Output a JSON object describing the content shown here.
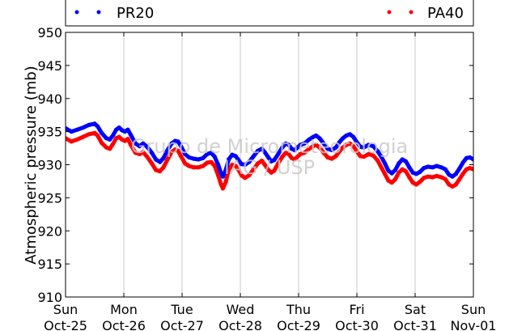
{
  "chart_data": {
    "type": "line",
    "ylabel": "Atmospheric pressure (mb)",
    "ylim": [
      910,
      950
    ],
    "yticks": [
      910,
      915,
      920,
      925,
      930,
      935,
      940,
      945,
      950
    ],
    "xlim": [
      0,
      7
    ],
    "xticks": [
      {
        "x": 0,
        "day": "Sun",
        "date": "Oct-25"
      },
      {
        "x": 1,
        "day": "Mon",
        "date": "Oct-26"
      },
      {
        "x": 2,
        "day": "Tue",
        "date": "Oct-27"
      },
      {
        "x": 3,
        "day": "Wed",
        "date": "Oct-28"
      },
      {
        "x": 4,
        "day": "Thu",
        "date": "Oct-29"
      },
      {
        "x": 5,
        "day": "Fri",
        "date": "Oct-30"
      },
      {
        "x": 6,
        "day": "Sat",
        "date": "Oct-31"
      },
      {
        "x": 7,
        "day": "Sun",
        "date": "Nov-01"
      }
    ],
    "grid": "vertical",
    "legend": "top",
    "watermark_lines": [
      "Grupo de Micrometeorologia",
      "IAG / USP"
    ],
    "series": [
      {
        "name": "PR20",
        "color": "#0000ff",
        "points": [
          [
            0.0,
            935.5
          ],
          [
            0.1,
            935.0
          ],
          [
            0.2,
            935.3
          ],
          [
            0.3,
            935.6
          ],
          [
            0.4,
            936.0
          ],
          [
            0.5,
            936.2
          ],
          [
            0.55,
            935.8
          ],
          [
            0.62,
            934.8
          ],
          [
            0.7,
            934.0
          ],
          [
            0.76,
            933.8
          ],
          [
            0.82,
            934.5
          ],
          [
            0.87,
            935.3
          ],
          [
            0.92,
            935.6
          ],
          [
            0.97,
            935.2
          ],
          [
            1.02,
            935.0
          ],
          [
            1.07,
            935.3
          ],
          [
            1.12,
            934.5
          ],
          [
            1.2,
            933.2
          ],
          [
            1.27,
            932.8
          ],
          [
            1.33,
            933.2
          ],
          [
            1.4,
            932.7
          ],
          [
            1.48,
            931.8
          ],
          [
            1.55,
            930.8
          ],
          [
            1.62,
            930.4
          ],
          [
            1.68,
            931.0
          ],
          [
            1.75,
            932.2
          ],
          [
            1.82,
            933.2
          ],
          [
            1.88,
            933.6
          ],
          [
            1.93,
            933.5
          ],
          [
            1.98,
            932.8
          ],
          [
            2.05,
            931.6
          ],
          [
            2.12,
            931.1
          ],
          [
            2.2,
            930.9
          ],
          [
            2.28,
            930.8
          ],
          [
            2.36,
            931.0
          ],
          [
            2.43,
            931.6
          ],
          [
            2.5,
            931.8
          ],
          [
            2.56,
            931.2
          ],
          [
            2.62,
            930.0
          ],
          [
            2.67,
            928.7
          ],
          [
            2.7,
            928.2
          ],
          [
            2.75,
            929.2
          ],
          [
            2.8,
            930.8
          ],
          [
            2.86,
            931.5
          ],
          [
            2.92,
            931.3
          ],
          [
            2.97,
            930.7
          ],
          [
            3.02,
            930.1
          ],
          [
            3.08,
            930.0
          ],
          [
            3.15,
            930.4
          ],
          [
            3.22,
            931.2
          ],
          [
            3.3,
            932.1
          ],
          [
            3.37,
            932.4
          ],
          [
            3.42,
            931.9
          ],
          [
            3.48,
            931.1
          ],
          [
            3.53,
            930.5
          ],
          [
            3.58,
            930.7
          ],
          [
            3.65,
            931.6
          ],
          [
            3.72,
            932.6
          ],
          [
            3.78,
            933.2
          ],
          [
            3.83,
            933.0
          ],
          [
            3.88,
            932.4
          ],
          [
            3.93,
            932.2
          ],
          [
            3.98,
            932.6
          ],
          [
            4.03,
            933.0
          ],
          [
            4.1,
            933.2
          ],
          [
            4.18,
            933.8
          ],
          [
            4.25,
            934.2
          ],
          [
            4.3,
            934.4
          ],
          [
            4.36,
            934.0
          ],
          [
            4.43,
            933.2
          ],
          [
            4.5,
            932.4
          ],
          [
            4.57,
            932.2
          ],
          [
            4.64,
            932.6
          ],
          [
            4.7,
            933.4
          ],
          [
            4.76,
            934.0
          ],
          [
            4.82,
            934.4
          ],
          [
            4.88,
            934.6
          ],
          [
            4.94,
            934.2
          ],
          [
            5.0,
            933.4
          ],
          [
            5.06,
            932.7
          ],
          [
            5.12,
            932.6
          ],
          [
            5.2,
            933.0
          ],
          [
            5.28,
            932.8
          ],
          [
            5.36,
            932.0
          ],
          [
            5.42,
            931.2
          ],
          [
            5.48,
            930.2
          ],
          [
            5.54,
            929.1
          ],
          [
            5.6,
            928.7
          ],
          [
            5.66,
            929.2
          ],
          [
            5.72,
            930.2
          ],
          [
            5.78,
            930.8
          ],
          [
            5.84,
            930.5
          ],
          [
            5.9,
            929.6
          ],
          [
            5.96,
            928.8
          ],
          [
            6.02,
            928.6
          ],
          [
            6.08,
            928.9
          ],
          [
            6.15,
            929.5
          ],
          [
            6.22,
            929.7
          ],
          [
            6.3,
            929.6
          ],
          [
            6.37,
            929.8
          ],
          [
            6.45,
            929.6
          ],
          [
            6.52,
            929.3
          ],
          [
            6.58,
            928.5
          ],
          [
            6.64,
            928.2
          ],
          [
            6.7,
            928.6
          ],
          [
            6.76,
            929.4
          ],
          [
            6.82,
            930.3
          ],
          [
            6.88,
            931.0
          ],
          [
            6.94,
            931.1
          ],
          [
            7.0,
            930.8
          ]
        ]
      },
      {
        "name": "PA40",
        "color": "#ff0000",
        "points": [
          [
            0.0,
            934.0
          ],
          [
            0.1,
            933.5
          ],
          [
            0.2,
            933.8
          ],
          [
            0.3,
            934.2
          ],
          [
            0.4,
            934.6
          ],
          [
            0.5,
            934.8
          ],
          [
            0.55,
            934.4
          ],
          [
            0.62,
            933.3
          ],
          [
            0.7,
            932.6
          ],
          [
            0.76,
            932.4
          ],
          [
            0.82,
            933.2
          ],
          [
            0.87,
            934.0
          ],
          [
            0.92,
            934.2
          ],
          [
            0.97,
            933.8
          ],
          [
            1.02,
            933.6
          ],
          [
            1.07,
            933.9
          ],
          [
            1.12,
            933.0
          ],
          [
            1.2,
            931.8
          ],
          [
            1.27,
            931.6
          ],
          [
            1.33,
            931.9
          ],
          [
            1.4,
            931.2
          ],
          [
            1.48,
            930.2
          ],
          [
            1.55,
            929.2
          ],
          [
            1.62,
            929.0
          ],
          [
            1.68,
            929.6
          ],
          [
            1.75,
            930.8
          ],
          [
            1.82,
            931.9
          ],
          [
            1.88,
            932.3
          ],
          [
            1.93,
            932.1
          ],
          [
            1.98,
            931.3
          ],
          [
            2.05,
            930.2
          ],
          [
            2.12,
            929.8
          ],
          [
            2.2,
            929.6
          ],
          [
            2.28,
            929.6
          ],
          [
            2.36,
            929.8
          ],
          [
            2.43,
            930.3
          ],
          [
            2.5,
            930.4
          ],
          [
            2.56,
            929.8
          ],
          [
            2.62,
            928.4
          ],
          [
            2.67,
            927.0
          ],
          [
            2.7,
            926.4
          ],
          [
            2.75,
            927.4
          ],
          [
            2.8,
            929.2
          ],
          [
            2.86,
            930.0
          ],
          [
            2.92,
            929.8
          ],
          [
            2.97,
            929.2
          ],
          [
            3.02,
            928.4
          ],
          [
            3.08,
            928.0
          ],
          [
            3.15,
            928.4
          ],
          [
            3.22,
            929.2
          ],
          [
            3.3,
            930.2
          ],
          [
            3.37,
            930.6
          ],
          [
            3.42,
            930.0
          ],
          [
            3.48,
            929.2
          ],
          [
            3.53,
            928.8
          ],
          [
            3.58,
            929.1
          ],
          [
            3.65,
            930.2
          ],
          [
            3.72,
            931.2
          ],
          [
            3.78,
            931.8
          ],
          [
            3.83,
            931.6
          ],
          [
            3.88,
            931.0
          ],
          [
            3.93,
            930.8
          ],
          [
            3.98,
            931.2
          ],
          [
            4.03,
            931.6
          ],
          [
            4.1,
            931.8
          ],
          [
            4.18,
            932.4
          ],
          [
            4.25,
            932.8
          ],
          [
            4.3,
            933.0
          ],
          [
            4.36,
            932.6
          ],
          [
            4.43,
            931.8
          ],
          [
            4.5,
            931.1
          ],
          [
            4.57,
            930.9
          ],
          [
            4.64,
            931.3
          ],
          [
            4.7,
            932.0
          ],
          [
            4.76,
            932.6
          ],
          [
            4.82,
            933.0
          ],
          [
            4.88,
            933.2
          ],
          [
            4.94,
            932.8
          ],
          [
            5.0,
            932.0
          ],
          [
            5.06,
            931.3
          ],
          [
            5.12,
            931.2
          ],
          [
            5.2,
            931.6
          ],
          [
            5.28,
            931.4
          ],
          [
            5.36,
            930.6
          ],
          [
            5.42,
            929.6
          ],
          [
            5.48,
            928.6
          ],
          [
            5.54,
            927.6
          ],
          [
            5.6,
            927.3
          ],
          [
            5.66,
            927.8
          ],
          [
            5.72,
            928.8
          ],
          [
            5.78,
            929.3
          ],
          [
            5.84,
            929.0
          ],
          [
            5.9,
            928.1
          ],
          [
            5.96,
            927.3
          ],
          [
            6.02,
            927.0
          ],
          [
            6.08,
            927.4
          ],
          [
            6.15,
            928.0
          ],
          [
            6.22,
            928.2
          ],
          [
            6.3,
            928.1
          ],
          [
            6.37,
            928.3
          ],
          [
            6.45,
            928.1
          ],
          [
            6.52,
            927.8
          ],
          [
            6.58,
            927.0
          ],
          [
            6.64,
            926.7
          ],
          [
            6.7,
            927.0
          ],
          [
            6.76,
            927.8
          ],
          [
            6.82,
            928.6
          ],
          [
            6.88,
            929.3
          ],
          [
            6.94,
            929.5
          ],
          [
            7.0,
            929.3
          ]
        ]
      }
    ]
  }
}
